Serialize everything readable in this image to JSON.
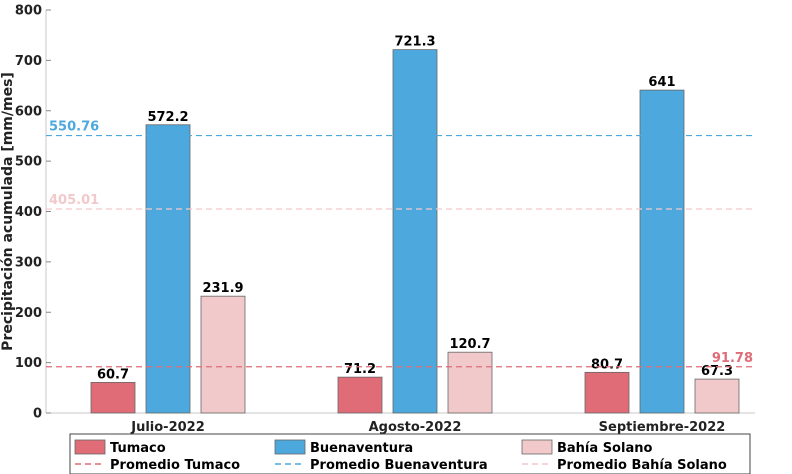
{
  "chart_data": {
    "type": "bar",
    "ylabel": "Precipitación acumulada [mm/mes]",
    "xlabel": "",
    "ylim": [
      0,
      800
    ],
    "yticks": [
      "0",
      "100",
      "200",
      "300",
      "400",
      "500",
      "600",
      "700",
      "800"
    ],
    "categories": [
      "Julio-2022",
      "Agosto-2022",
      "Septiembre-2022"
    ],
    "series": [
      {
        "name": "Tumaco",
        "color": "#e06c78",
        "values": [
          60.7,
          71.2,
          80.7
        ],
        "labels": [
          "60.7",
          "71.2",
          "80.7"
        ]
      },
      {
        "name": "Buenaventura",
        "color": "#4da9dd",
        "values": [
          572.2,
          721.3,
          641
        ],
        "labels": [
          "572.2",
          "721.3",
          "641"
        ]
      },
      {
        "name": "Bahía Solano",
        "color": "#f2c9ca",
        "values": [
          231.9,
          120.7,
          67.3
        ],
        "labels": [
          "231.9",
          "120.7",
          "67.3"
        ]
      }
    ],
    "reference_lines": [
      {
        "name": "Promedio Tumaco",
        "value": 91.78,
        "label": "91.78",
        "color": "#e06c78",
        "label_position": "right"
      },
      {
        "name": "Promedio Buenaventura",
        "value": 550.76,
        "label": "550.76",
        "color": "#4da9dd",
        "label_position": "left"
      },
      {
        "name": "Promedio Bahía Solano",
        "value": 405.01,
        "label": "405.01",
        "color": "#f2c9ca",
        "label_position": "left"
      }
    ],
    "grid": false,
    "legend_position": "bottom"
  }
}
